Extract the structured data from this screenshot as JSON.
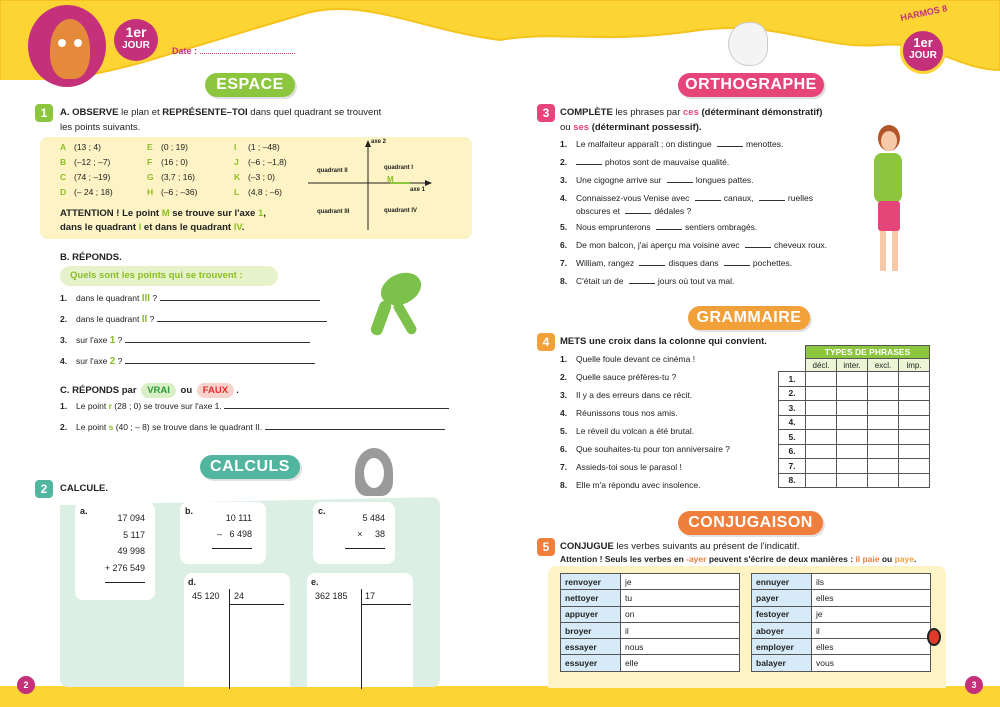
{
  "header": {
    "jour_top": "1er",
    "jour_bottom": "JOUR",
    "date_label": "Date :",
    "harmos": "HARMOS 8"
  },
  "colors": {
    "yellow": "#fcd535",
    "magenta": "#c4317a",
    "green": "#8cc63f",
    "pink": "#e6457a",
    "orange": "#f2a03a",
    "orange_red": "#f07e3c"
  },
  "left": {
    "section_espace": "ESPACE",
    "ex1": {
      "number": "1",
      "title_a": "A. OBSERVE",
      "title_b": " le plan et ",
      "title_c": "REPRÉSENTE–TOI",
      "title_d": " dans quel quadrant se trouvent",
      "title_e": "les points suivants.",
      "points": [
        {
          "l": "A",
          "v": "(13 ; 4)"
        },
        {
          "l": "B",
          "v": "(–12 ; –7)"
        },
        {
          "l": "C",
          "v": "(74 ; –19)"
        },
        {
          "l": "D",
          "v": "(– 24 ; 18)"
        },
        {
          "l": "E",
          "v": "(0 ; 19)"
        },
        {
          "l": "F",
          "v": "(16 ; 0)"
        },
        {
          "l": "G",
          "v": "(3,7 ; 16)"
        },
        {
          "l": "H",
          "v": "(–6 ; –36)"
        },
        {
          "l": "I",
          "v": "(1 ; –48)"
        },
        {
          "l": "J",
          "v": "(–6 ; –1,8)"
        },
        {
          "l": "K",
          "v": "(–3 ; 0)"
        },
        {
          "l": "L",
          "v": "(4,8 ; –6)"
        }
      ],
      "plane": {
        "axe2": "axe 2",
        "axe1": "axe 1",
        "q1": "quadrant I",
        "q2": "quadrant II",
        "q3": "quadrant III",
        "q4": "quadrant IV",
        "m": "M"
      },
      "attention": {
        "a": "ATTENTION !",
        "b": " Le point ",
        "m": "M",
        "c": " se trouve sur l'axe ",
        "one": "1",
        "d": ",",
        "e": "dans le quadrant ",
        "i": "I",
        "f": " et dans le quadrant ",
        "iv": "IV",
        "g": "."
      },
      "b_title": "B. RÉPONDS.",
      "b_pill": "Quels sont les points qui se trouvent :",
      "b_items": [
        {
          "n": "1.",
          "t": "dans le quadrant ",
          "h": "III",
          "e": " ?"
        },
        {
          "n": "2.",
          "t": "dans le quadrant ",
          "h": "II",
          "e": " ?"
        },
        {
          "n": "3.",
          "t": "sur l'axe ",
          "h": "1",
          "e": " ?"
        },
        {
          "n": "4.",
          "t": "sur l'axe ",
          "h": "2",
          "e": " ?"
        }
      ],
      "c_title": "C. RÉPONDS par",
      "vrai": "VRAI",
      "ou": "ou",
      "faux": "FAUX",
      "dot": ".",
      "c_items": [
        {
          "n": "1.",
          "a": "Le point ",
          "p": "r",
          "b": " (28 ; 0) se trouve sur l'axe 1."
        },
        {
          "n": "2.",
          "a": "Le point ",
          "p": "s",
          "b": " (40 ; – 8) se trouve dans le quadrant II."
        }
      ]
    },
    "section_calculs": "CALCULS",
    "ex2": {
      "number": "2",
      "title": "CALCULE.",
      "a": {
        "label": "a.",
        "lines": [
          "17 094",
          "5 117",
          "49 998",
          "+ 276 549"
        ]
      },
      "b": {
        "label": "b.",
        "lines": [
          "10 111",
          "–   6 498"
        ]
      },
      "c": {
        "label": "c.",
        "lines": [
          "5 484",
          "×     38"
        ]
      },
      "d": {
        "label": "d.",
        "dividend": "45 120",
        "divisor": "24"
      },
      "e": {
        "label": "e.",
        "dividend": "362 185",
        "divisor": "17"
      }
    },
    "page_number": "2"
  },
  "right": {
    "section_orthographe": "ORTHOGRAPHE",
    "ex3": {
      "number": "3",
      "t1": "COMPLÈTE",
      "t2": " les phrases par ",
      "ces": "ces",
      "t3": " (déterminant démonstratif)",
      "t4": "ou ",
      "ses": "ses",
      "t5": " (déterminant possessif).",
      "items": [
        {
          "n": "1.",
          "parts": [
            "Le malfaiteur apparaît ; on distingue ",
            "menottes."
          ]
        },
        {
          "n": "2.",
          "parts": [
            "",
            "photos sont de mauvaise qualité."
          ]
        },
        {
          "n": "3.",
          "parts": [
            "Une cigogne arrive sur ",
            "longues pattes."
          ]
        },
        {
          "n": "4.",
          "parts": [
            "Connaissez-vous Venise avec ",
            "canaux, ",
            "ruelles"
          ],
          "cont": [
            "obscures  et ",
            "dédales ?"
          ]
        },
        {
          "n": "5.",
          "parts": [
            "Nous emprunterons ",
            "sentiers ombragés."
          ]
        },
        {
          "n": "6.",
          "parts": [
            "De mon balcon, j'ai aperçu ma voisine avec ",
            "cheveux roux."
          ]
        },
        {
          "n": "7.",
          "parts": [
            "William, rangez ",
            "disques dans ",
            "pochettes."
          ]
        },
        {
          "n": "8.",
          "parts": [
            "C'était un de ",
            "jours où tout va mal."
          ]
        }
      ]
    },
    "section_grammaire": "GRAMMAIRE",
    "ex4": {
      "number": "4",
      "t1": "METS",
      "t2": " une croix dans la colonne qui convient.",
      "items": [
        {
          "n": "1.",
          "t": "Quelle foule devant ce cinéma !"
        },
        {
          "n": "2.",
          "t": "Quelle sauce préfères-tu ?"
        },
        {
          "n": "3.",
          "t": "Il y a des erreurs dans ce récit."
        },
        {
          "n": "4.",
          "t": "Réunissons tous nos amis."
        },
        {
          "n": "5.",
          "t": "Le réveil du volcan a été brutal."
        },
        {
          "n": "6.",
          "t": "Que souhaites-tu pour ton anniversaire ?"
        },
        {
          "n": "7.",
          "t": "Assieds-toi sous le parasol !"
        },
        {
          "n": "8.",
          "t": "Elle m'a répondu avec insolence."
        }
      ],
      "table": {
        "title": "TYPES DE PHRASES",
        "cols": [
          "décl.",
          "inter.",
          "excl.",
          "imp."
        ],
        "rows": [
          "1.",
          "2.",
          "3.",
          "4.",
          "5.",
          "6.",
          "7.",
          "8."
        ]
      }
    },
    "section_conjugaison": "CONJUGAISON",
    "ex5": {
      "number": "5",
      "t1": "CONJUGUE",
      "t2": " les verbes suivants au présent de l'indicatif.",
      "att1": "Attention ! Seuls les verbes en ",
      "ayer": "-ayer",
      "att2": " peuvent s'écrire de deux manières : ",
      "paie": "il paie",
      "att3": " ou ",
      "paye": "paye",
      "att4": ".",
      "left": [
        {
          "v": "renvoyer",
          "p": "je"
        },
        {
          "v": "nettoyer",
          "p": "tu"
        },
        {
          "v": "appuyer",
          "p": "on"
        },
        {
          "v": "broyer",
          "p": "il"
        },
        {
          "v": "essayer",
          "p": "nous"
        },
        {
          "v": "essuyer",
          "p": "elle"
        }
      ],
      "right": [
        {
          "v": "ennuyer",
          "p": "ils"
        },
        {
          "v": "payer",
          "p": "elles"
        },
        {
          "v": "festoyer",
          "p": "je"
        },
        {
          "v": "aboyer",
          "p": "il"
        },
        {
          "v": "employer",
          "p": "elles"
        },
        {
          "v": "balayer",
          "p": "vous"
        }
      ]
    },
    "page_number": "3"
  }
}
